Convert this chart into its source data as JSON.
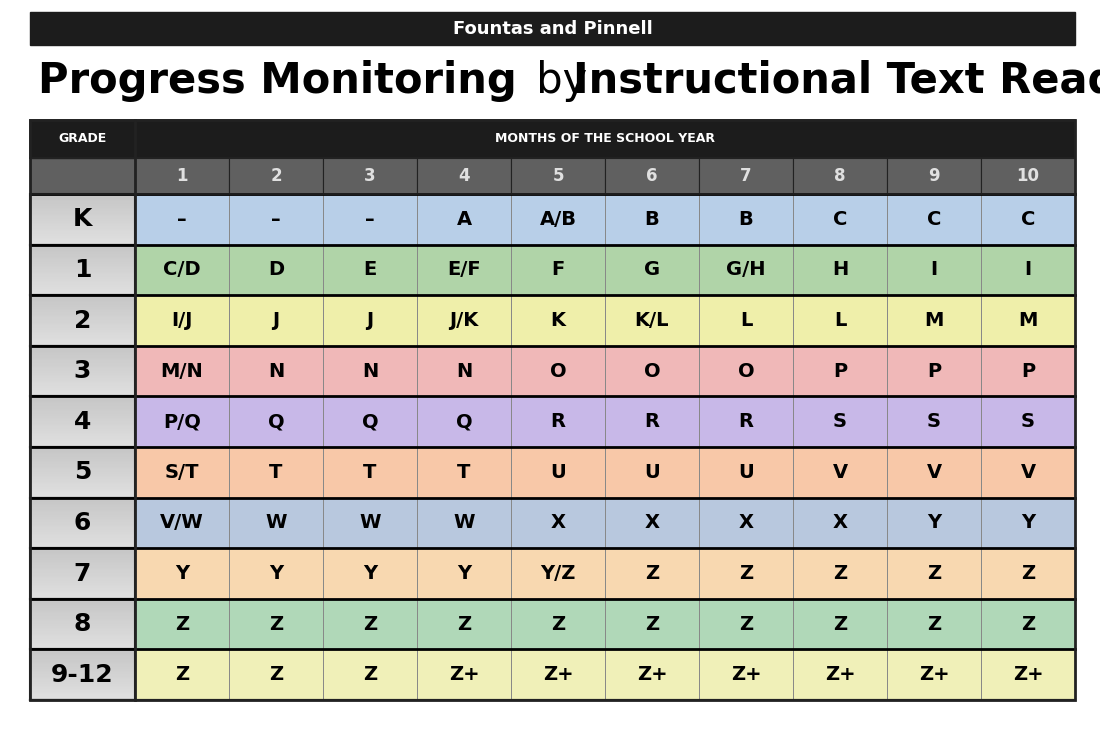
{
  "header_bar_text": "Fountas and Pinnell",
  "col_header_left": "GRADE",
  "col_header_right": "MONTHS OF THE SCHOOL YEAR",
  "months": [
    "1",
    "2",
    "3",
    "4",
    "5",
    "6",
    "7",
    "8",
    "9",
    "10"
  ],
  "grades": [
    "K",
    "1",
    "2",
    "3",
    "4",
    "5",
    "6",
    "7",
    "8",
    "9-12"
  ],
  "table_data": [
    [
      "–",
      "–",
      "–",
      "A",
      "A/B",
      "B",
      "B",
      "C",
      "C",
      "C"
    ],
    [
      "C/D",
      "D",
      "E",
      "E/F",
      "F",
      "G",
      "G/H",
      "H",
      "I",
      "I"
    ],
    [
      "I/J",
      "J",
      "J",
      "J/K",
      "K",
      "K/L",
      "L",
      "L",
      "M",
      "M"
    ],
    [
      "M/N",
      "N",
      "N",
      "N",
      "O",
      "O",
      "O",
      "P",
      "P",
      "P"
    ],
    [
      "P/Q",
      "Q",
      "Q",
      "Q",
      "R",
      "R",
      "R",
      "S",
      "S",
      "S"
    ],
    [
      "S/T",
      "T",
      "T",
      "T",
      "U",
      "U",
      "U",
      "V",
      "V",
      "V"
    ],
    [
      "V/W",
      "W",
      "W",
      "W",
      "X",
      "X",
      "X",
      "X",
      "Y",
      "Y"
    ],
    [
      "Y",
      "Y",
      "Y",
      "Y",
      "Y/Z",
      "Z",
      "Z",
      "Z",
      "Z",
      "Z"
    ],
    [
      "Z",
      "Z",
      "Z",
      "Z",
      "Z",
      "Z",
      "Z",
      "Z",
      "Z",
      "Z"
    ],
    [
      "Z",
      "Z",
      "Z",
      "Z+",
      "Z+",
      "Z+",
      "Z+",
      "Z+",
      "Z+",
      "Z+"
    ]
  ],
  "row_colors": [
    "#b8cfe8",
    "#b0d4a8",
    "#efefaa",
    "#f0b8b8",
    "#c8b8e8",
    "#f8c8a8",
    "#b8c8de",
    "#f8d8b0",
    "#b0d8b8",
    "#f0f0b8"
  ],
  "header_bg": "#1c1c1c",
  "header_text_color": "#ffffff",
  "grade_col_bg_top": "#e8e8e8",
  "grade_col_bg_bottom": "#c0c0c0",
  "month_header_bg": "#606060",
  "month_header_text": "#e0e0e0",
  "border_color": "#222222",
  "thin_border": "#888888",
  "title_fontsize": 30,
  "header_fontsize": 9,
  "cell_fontsize": 14,
  "grade_fontsize": 18,
  "month_num_fontsize": 12
}
